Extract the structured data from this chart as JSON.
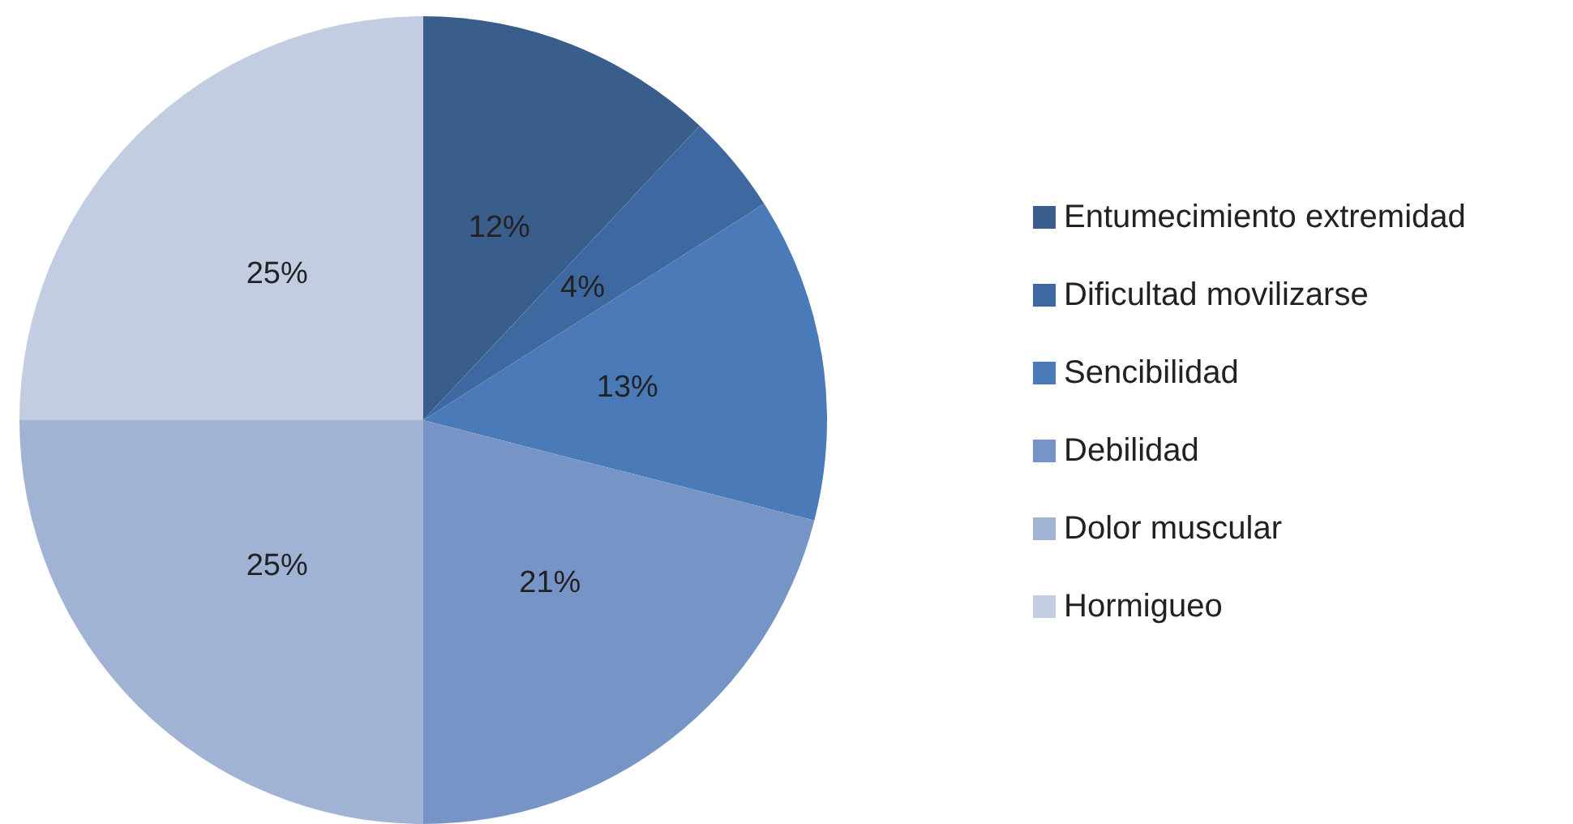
{
  "chart_data": {
    "type": "pie",
    "categories": [
      "Entumecimiento extremidad",
      "Dificultad movilizarse",
      "Sencibilidad",
      "Debilidad",
      "Dolor muscular",
      "Hormigueo"
    ],
    "values": [
      12,
      4,
      13,
      21,
      25,
      25
    ],
    "colors": [
      "#3a5e8c",
      "#3e69a0",
      "#4a7ab8",
      "#7695c6",
      "#a1b3d4",
      "#c3cde2"
    ],
    "value_labels": [
      "12%",
      "4%",
      "13%",
      "21%",
      "25%",
      "25%"
    ],
    "legend": "right"
  }
}
